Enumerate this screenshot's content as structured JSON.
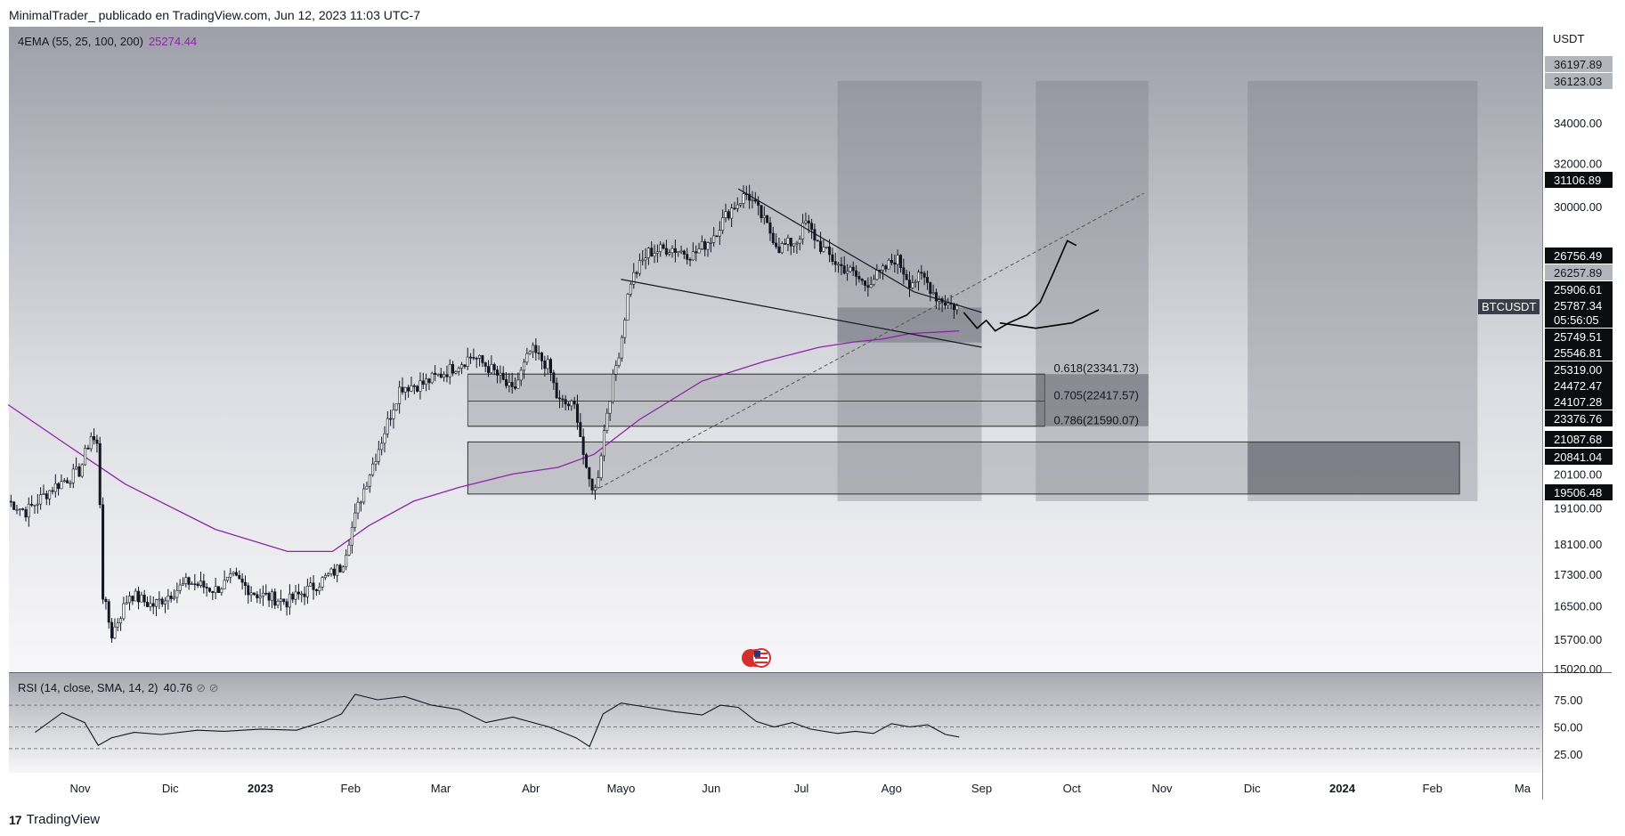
{
  "header": {
    "text": "MinimalTrader_ publicado en TradingView.com, Jun 12, 2023 11:03 UTC-7"
  },
  "footer": {
    "logo": "17",
    "brand": "TradingView"
  },
  "indicators": {
    "ema": {
      "label": "4EMA (55, 25, 100, 200)",
      "value": "25274.44",
      "color": "#8e24aa"
    },
    "rsi": {
      "label": "RSI (14, close, SMA, 14, 2)",
      "value": "40.76",
      "extra": "⊘ ⊘"
    }
  },
  "axis": {
    "unit": "USDT",
    "symbol_tag": "BTCUSDT"
  },
  "chart_data": {
    "type": "candlestick",
    "symbol": "BTCUSDT",
    "x_ticks": [
      "Nov",
      "Dic",
      "2023",
      "Feb",
      "Mar",
      "Abr",
      "Mayo",
      "Jun",
      "Jul",
      "Ago",
      "Sep",
      "Oct",
      "Nov",
      "Dic",
      "2024",
      "Feb",
      "Ma"
    ],
    "y_ticks": [
      15020,
      15700,
      16500,
      17300,
      18100,
      19100,
      20100,
      30000,
      32000,
      34000
    ],
    "price_labels": [
      {
        "value": "36197.89",
        "style": "grey"
      },
      {
        "value": "36123.03",
        "style": "grey"
      },
      {
        "value": "31106.89",
        "style": "dark"
      },
      {
        "value": "26756.49",
        "style": "dark"
      },
      {
        "value": "26257.89",
        "style": "grey"
      },
      {
        "value": "25906.61",
        "style": "dark"
      },
      {
        "value": "25787.34",
        "style": "dark"
      },
      {
        "value": "05:56:05",
        "style": "dark"
      },
      {
        "value": "25749.51",
        "style": "dark"
      },
      {
        "value": "25546.81",
        "style": "dark"
      },
      {
        "value": "25319.00",
        "style": "dark"
      },
      {
        "value": "24472.47",
        "style": "dark"
      },
      {
        "value": "24107.28",
        "style": "dark"
      },
      {
        "value": "23376.76",
        "style": "dark"
      },
      {
        "value": "21087.68",
        "style": "dark"
      },
      {
        "value": "20841.04",
        "style": "dark"
      },
      {
        "value": "19506.48",
        "style": "dark"
      }
    ],
    "fib_levels": [
      {
        "label": "0.618(23341.73)",
        "value": 23341.73
      },
      {
        "label": "0.705(22417.57)",
        "value": 22417.57
      },
      {
        "label": "0.786(21590.07)",
        "value": 21590.07
      }
    ],
    "price_approx": {
      "oct_2022": 19200,
      "nov_2022_high": 21400,
      "nov_2022_low": 15700,
      "dec_2022": 16800,
      "jan_2023_end": 23000,
      "feb_2023_high": 25100,
      "mar_2023_low": 19600,
      "apr_2023_high": 31000,
      "jun_2023": 25800
    },
    "rsi": {
      "y_ticks": [
        25,
        50,
        75
      ],
      "last": 40.76,
      "upper": 70,
      "mid": 50,
      "lower": 30
    }
  }
}
